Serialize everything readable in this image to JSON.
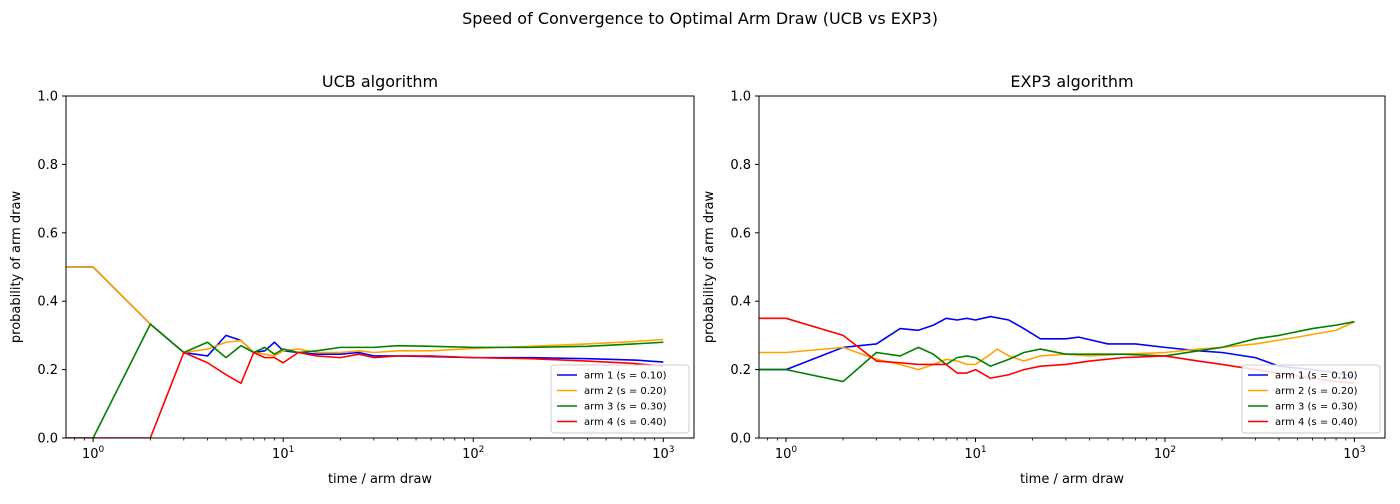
{
  "figure": {
    "suptitle": "Speed of Convergence to Optimal Arm Draw (UCB vs EXP3)"
  },
  "chart_data": [
    {
      "type": "line",
      "title": "UCB algorithm",
      "xlabel": "time / arm draw",
      "ylabel": "probability of arm draw",
      "xscale": "log",
      "xlim": [
        0.72,
        1450
      ],
      "ylim": [
        0,
        1.0
      ],
      "xticks": [
        {
          "value": 1,
          "mantissa": "10",
          "exp": "0"
        },
        {
          "value": 10,
          "mantissa": "10",
          "exp": "1"
        },
        {
          "value": 100,
          "mantissa": "10",
          "exp": "2"
        },
        {
          "value": 1000,
          "mantissa": "10",
          "exp": "3"
        }
      ],
      "yticks": [
        "0.0",
        "0.2",
        "0.4",
        "0.6",
        "0.8",
        "1.0"
      ],
      "legend_position": "lower-right",
      "grid": false,
      "series": [
        {
          "name": "arm 1 (s = 0.10)",
          "color": "#0000ff",
          "points": [
            [
              0.72,
              0.5
            ],
            [
              1,
              0.5
            ],
            [
              2,
              0.333
            ],
            [
              3,
              0.25
            ],
            [
              4,
              0.24
            ],
            [
              5,
              0.3
            ],
            [
              6,
              0.285
            ],
            [
              7,
              0.25
            ],
            [
              8,
              0.255
            ],
            [
              9,
              0.28
            ],
            [
              10,
              0.255
            ],
            [
              12,
              0.25
            ],
            [
              15,
              0.245
            ],
            [
              20,
              0.245
            ],
            [
              25,
              0.25
            ],
            [
              30,
              0.24
            ],
            [
              40,
              0.24
            ],
            [
              60,
              0.238
            ],
            [
              100,
              0.235
            ],
            [
              200,
              0.235
            ],
            [
              400,
              0.232
            ],
            [
              700,
              0.228
            ],
            [
              1000,
              0.222
            ]
          ]
        },
        {
          "name": "arm 2 (s = 0.20)",
          "color": "#ffa500",
          "points": [
            [
              0.72,
              0.5
            ],
            [
              1,
              0.5
            ],
            [
              2,
              0.333
            ],
            [
              3,
              0.25
            ],
            [
              4,
              0.26
            ],
            [
              5,
              0.28
            ],
            [
              6,
              0.285
            ],
            [
              7,
              0.25
            ],
            [
              8,
              0.245
            ],
            [
              9,
              0.24
            ],
            [
              10,
              0.255
            ],
            [
              12,
              0.26
            ],
            [
              15,
              0.25
            ],
            [
              20,
              0.25
            ],
            [
              25,
              0.255
            ],
            [
              30,
              0.25
            ],
            [
              40,
              0.255
            ],
            [
              60,
              0.255
            ],
            [
              100,
              0.262
            ],
            [
              200,
              0.268
            ],
            [
              400,
              0.275
            ],
            [
              700,
              0.282
            ],
            [
              1000,
              0.288
            ]
          ]
        },
        {
          "name": "arm 3 (s = 0.30)",
          "color": "#008000",
          "points": [
            [
              0.72,
              0.0
            ],
            [
              1,
              0.0
            ],
            [
              2,
              0.333
            ],
            [
              3,
              0.25
            ],
            [
              4,
              0.28
            ],
            [
              5,
              0.235
            ],
            [
              6,
              0.27
            ],
            [
              7,
              0.25
            ],
            [
              8,
              0.265
            ],
            [
              9,
              0.245
            ],
            [
              10,
              0.26
            ],
            [
              12,
              0.25
            ],
            [
              15,
              0.255
            ],
            [
              20,
              0.265
            ],
            [
              25,
              0.265
            ],
            [
              30,
              0.265
            ],
            [
              40,
              0.27
            ],
            [
              60,
              0.268
            ],
            [
              100,
              0.265
            ],
            [
              200,
              0.265
            ],
            [
              400,
              0.268
            ],
            [
              700,
              0.275
            ],
            [
              1000,
              0.28
            ]
          ]
        },
        {
          "name": "arm 4 (s = 0.40)",
          "color": "#ff0000",
          "points": [
            [
              0.72,
              0.0
            ],
            [
              1,
              0.0
            ],
            [
              2,
              0.0
            ],
            [
              3,
              0.25
            ],
            [
              4,
              0.22
            ],
            [
              5,
              0.185
            ],
            [
              6,
              0.16
            ],
            [
              7,
              0.25
            ],
            [
              8,
              0.235
            ],
            [
              9,
              0.235
            ],
            [
              10,
              0.22
            ],
            [
              12,
              0.25
            ],
            [
              15,
              0.24
            ],
            [
              20,
              0.235
            ],
            [
              25,
              0.245
            ],
            [
              30,
              0.235
            ],
            [
              40,
              0.24
            ],
            [
              60,
              0.24
            ],
            [
              100,
              0.235
            ],
            [
              200,
              0.232
            ],
            [
              400,
              0.225
            ],
            [
              700,
              0.218
            ],
            [
              1000,
              0.21
            ]
          ]
        }
      ]
    },
    {
      "type": "line",
      "title": "EXP3 algorithm",
      "xlabel": "time / arm draw",
      "ylabel": "probability of arm draw",
      "xscale": "log",
      "xlim": [
        0.72,
        1450
      ],
      "ylim": [
        0,
        1.0
      ],
      "xticks": [
        {
          "value": 1,
          "mantissa": "10",
          "exp": "0"
        },
        {
          "value": 10,
          "mantissa": "10",
          "exp": "1"
        },
        {
          "value": 100,
          "mantissa": "10",
          "exp": "2"
        },
        {
          "value": 1000,
          "mantissa": "10",
          "exp": "3"
        }
      ],
      "yticks": [
        "0.0",
        "0.2",
        "0.4",
        "0.6",
        "0.8",
        "1.0"
      ],
      "legend_position": "lower-right",
      "grid": false,
      "series": [
        {
          "name": "arm 1 (s = 0.10)",
          "color": "#0000ff",
          "points": [
            [
              0.72,
              0.2
            ],
            [
              1,
              0.2
            ],
            [
              2,
              0.265
            ],
            [
              3,
              0.275
            ],
            [
              4,
              0.32
            ],
            [
              5,
              0.315
            ],
            [
              6,
              0.33
            ],
            [
              7,
              0.35
            ],
            [
              8,
              0.345
            ],
            [
              9,
              0.35
            ],
            [
              10,
              0.345
            ],
            [
              12,
              0.355
            ],
            [
              15,
              0.345
            ],
            [
              18,
              0.32
            ],
            [
              22,
              0.29
            ],
            [
              30,
              0.29
            ],
            [
              35,
              0.295
            ],
            [
              50,
              0.275
            ],
            [
              70,
              0.275
            ],
            [
              100,
              0.265
            ],
            [
              150,
              0.255
            ],
            [
              200,
              0.25
            ],
            [
              300,
              0.235
            ],
            [
              400,
              0.21
            ],
            [
              600,
              0.2
            ],
            [
              800,
              0.19
            ],
            [
              1000,
              0.18
            ]
          ]
        },
        {
          "name": "arm 2 (s = 0.20)",
          "color": "#ffa500",
          "points": [
            [
              0.72,
              0.25
            ],
            [
              1,
              0.25
            ],
            [
              2,
              0.265
            ],
            [
              3,
              0.23
            ],
            [
              4,
              0.215
            ],
            [
              5,
              0.2
            ],
            [
              6,
              0.215
            ],
            [
              7,
              0.23
            ],
            [
              8,
              0.225
            ],
            [
              9,
              0.215
            ],
            [
              10,
              0.215
            ],
            [
              12,
              0.245
            ],
            [
              13,
              0.26
            ],
            [
              15,
              0.24
            ],
            [
              18,
              0.225
            ],
            [
              22,
              0.24
            ],
            [
              30,
              0.245
            ],
            [
              40,
              0.24
            ],
            [
              60,
              0.245
            ],
            [
              100,
              0.25
            ],
            [
              150,
              0.26
            ],
            [
              200,
              0.265
            ],
            [
              300,
              0.275
            ],
            [
              500,
              0.295
            ],
            [
              800,
              0.315
            ],
            [
              1000,
              0.34
            ]
          ]
        },
        {
          "name": "arm 3 (s = 0.30)",
          "color": "#008000",
          "points": [
            [
              0.72,
              0.2
            ],
            [
              1,
              0.2
            ],
            [
              2,
              0.165
            ],
            [
              3,
              0.25
            ],
            [
              4,
              0.24
            ],
            [
              5,
              0.265
            ],
            [
              6,
              0.245
            ],
            [
              7,
              0.215
            ],
            [
              8,
              0.235
            ],
            [
              9,
              0.24
            ],
            [
              10,
              0.235
            ],
            [
              12,
              0.21
            ],
            [
              15,
              0.23
            ],
            [
              18,
              0.25
            ],
            [
              22,
              0.26
            ],
            [
              30,
              0.245
            ],
            [
              40,
              0.245
            ],
            [
              60,
              0.245
            ],
            [
              100,
              0.24
            ],
            [
              150,
              0.255
            ],
            [
              200,
              0.265
            ],
            [
              300,
              0.29
            ],
            [
              400,
              0.3
            ],
            [
              600,
              0.32
            ],
            [
              800,
              0.33
            ],
            [
              1000,
              0.34
            ]
          ]
        },
        {
          "name": "arm 4 (s = 0.40)",
          "color": "#ff0000",
          "points": [
            [
              0.72,
              0.35
            ],
            [
              1,
              0.35
            ],
            [
              2,
              0.3
            ],
            [
              3,
              0.225
            ],
            [
              4,
              0.22
            ],
            [
              5,
              0.215
            ],
            [
              6,
              0.215
            ],
            [
              7,
              0.215
            ],
            [
              8,
              0.19
            ],
            [
              9,
              0.19
            ],
            [
              10,
              0.2
            ],
            [
              12,
              0.175
            ],
            [
              15,
              0.185
            ],
            [
              18,
              0.2
            ],
            [
              22,
              0.21
            ],
            [
              30,
              0.215
            ],
            [
              40,
              0.225
            ],
            [
              60,
              0.235
            ],
            [
              100,
              0.24
            ],
            [
              150,
              0.225
            ],
            [
              200,
              0.215
            ],
            [
              300,
              0.2
            ],
            [
              400,
              0.19
            ],
            [
              600,
              0.175
            ],
            [
              800,
              0.165
            ],
            [
              1000,
              0.16
            ]
          ]
        }
      ]
    }
  ]
}
